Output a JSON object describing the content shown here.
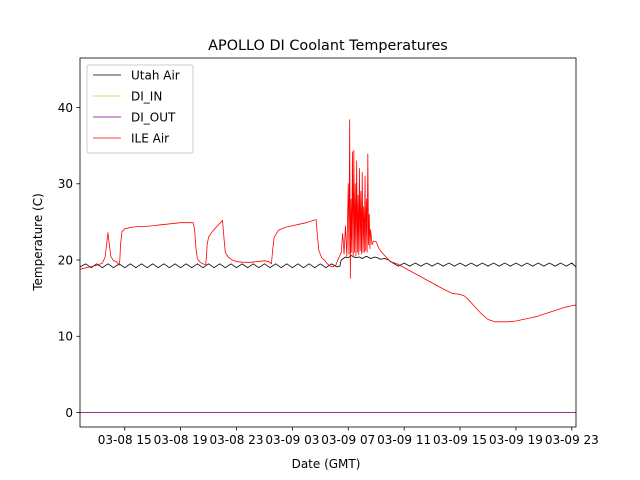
{
  "chart_data": {
    "type": "line",
    "title": "APOLLO DI Coolant Temperatures",
    "xlabel": "Date (GMT)",
    "ylabel": "Temperature (C)",
    "x_unit": "hours since 03-08 00:00 GMT",
    "xlim": [
      11.8,
      47.3
    ],
    "ylim": [
      -1.9,
      46.5
    ],
    "x_ticks": [
      {
        "value": 15,
        "label": "03-08 15"
      },
      {
        "value": 19,
        "label": "03-08 19"
      },
      {
        "value": 23,
        "label": "03-08 23"
      },
      {
        "value": 27,
        "label": "03-09 03"
      },
      {
        "value": 31,
        "label": "03-09 07"
      },
      {
        "value": 35,
        "label": "03-09 11"
      },
      {
        "value": 39,
        "label": "03-09 15"
      },
      {
        "value": 43,
        "label": "03-09 19"
      },
      {
        "value": 47,
        "label": "03-09 23"
      }
    ],
    "y_ticks": [
      {
        "value": 0,
        "label": "0"
      },
      {
        "value": 10,
        "label": "10"
      },
      {
        "value": 20,
        "label": "20"
      },
      {
        "value": 30,
        "label": "30"
      },
      {
        "value": 40,
        "label": "40"
      }
    ],
    "grid": false,
    "legend_position": "top-left",
    "series": [
      {
        "name": "Utah Air",
        "color": "#000000",
        "points": [
          [
            11.8,
            19.1
          ],
          [
            12.2,
            19.5
          ],
          [
            12.6,
            19.0
          ],
          [
            13.0,
            19.5
          ],
          [
            13.4,
            19.0
          ],
          [
            13.8,
            19.5
          ],
          [
            14.2,
            19.0
          ],
          [
            14.6,
            19.5
          ],
          [
            15.0,
            19.0
          ],
          [
            15.4,
            19.5
          ],
          [
            15.8,
            19.0
          ],
          [
            16.2,
            19.5
          ],
          [
            16.6,
            19.0
          ],
          [
            17.0,
            19.5
          ],
          [
            17.4,
            19.0
          ],
          [
            17.8,
            19.5
          ],
          [
            18.2,
            19.0
          ],
          [
            18.6,
            19.5
          ],
          [
            19.0,
            19.0
          ],
          [
            19.4,
            19.5
          ],
          [
            19.8,
            19.0
          ],
          [
            20.2,
            19.5
          ],
          [
            20.6,
            19.0
          ],
          [
            21.0,
            19.5
          ],
          [
            21.4,
            19.0
          ],
          [
            21.8,
            19.5
          ],
          [
            22.2,
            19.0
          ],
          [
            22.6,
            19.5
          ],
          [
            23.0,
            19.0
          ],
          [
            23.4,
            19.5
          ],
          [
            23.8,
            19.0
          ],
          [
            24.2,
            19.5
          ],
          [
            24.6,
            19.0
          ],
          [
            25.0,
            19.5
          ],
          [
            25.4,
            19.0
          ],
          [
            25.8,
            19.5
          ],
          [
            26.2,
            19.0
          ],
          [
            26.6,
            19.5
          ],
          [
            27.0,
            19.0
          ],
          [
            27.4,
            19.5
          ],
          [
            27.8,
            19.0
          ],
          [
            28.2,
            19.5
          ],
          [
            28.6,
            19.0
          ],
          [
            29.0,
            19.5
          ],
          [
            29.4,
            19.0
          ],
          [
            29.8,
            19.5
          ],
          [
            30.2,
            19.1
          ],
          [
            30.4,
            19.2
          ],
          [
            30.5,
            20.0
          ],
          [
            30.8,
            20.4
          ],
          [
            31.0,
            20.3
          ],
          [
            31.2,
            20.6
          ],
          [
            31.5,
            20.3
          ],
          [
            31.8,
            20.4
          ],
          [
            32.0,
            20.2
          ],
          [
            32.3,
            20.5
          ],
          [
            32.6,
            20.2
          ],
          [
            32.9,
            20.4
          ],
          [
            33.1,
            20.3
          ],
          [
            33.3,
            20.1
          ],
          [
            33.6,
            20.2
          ],
          [
            33.9,
            20.0
          ],
          [
            34.2,
            19.6
          ],
          [
            34.6,
            19.2
          ],
          [
            35.0,
            19.6
          ],
          [
            35.4,
            19.2
          ],
          [
            35.8,
            19.6
          ],
          [
            36.2,
            19.2
          ],
          [
            36.6,
            19.6
          ],
          [
            37.0,
            19.2
          ],
          [
            37.4,
            19.6
          ],
          [
            37.8,
            19.2
          ],
          [
            38.2,
            19.6
          ],
          [
            38.6,
            19.2
          ],
          [
            39.0,
            19.6
          ],
          [
            39.4,
            19.2
          ],
          [
            39.8,
            19.6
          ],
          [
            40.2,
            19.2
          ],
          [
            40.6,
            19.6
          ],
          [
            41.0,
            19.2
          ],
          [
            41.4,
            19.6
          ],
          [
            41.8,
            19.2
          ],
          [
            42.2,
            19.6
          ],
          [
            42.6,
            19.2
          ],
          [
            43.0,
            19.6
          ],
          [
            43.4,
            19.2
          ],
          [
            43.8,
            19.6
          ],
          [
            44.2,
            19.2
          ],
          [
            44.6,
            19.6
          ],
          [
            45.0,
            19.2
          ],
          [
            45.4,
            19.6
          ],
          [
            45.8,
            19.2
          ],
          [
            46.2,
            19.6
          ],
          [
            46.6,
            19.2
          ],
          [
            47.0,
            19.6
          ],
          [
            47.3,
            19.1
          ]
        ]
      },
      {
        "name": "DI_IN",
        "color": "#dfc027",
        "points": [
          [
            11.8,
            0
          ],
          [
            47.3,
            0
          ]
        ]
      },
      {
        "name": "DI_OUT",
        "color": "#800080",
        "points": [
          [
            11.8,
            0
          ],
          [
            47.3,
            0
          ]
        ]
      },
      {
        "name": "ILE Air",
        "color": "#ff0000",
        "points": [
          [
            11.8,
            18.8
          ],
          [
            12.5,
            19.1
          ],
          [
            13.0,
            19.3
          ],
          [
            13.4,
            19.6
          ],
          [
            13.6,
            20.4
          ],
          [
            13.7,
            22.0
          ],
          [
            13.8,
            23.6
          ],
          [
            13.9,
            22.0
          ],
          [
            14.0,
            20.5
          ],
          [
            14.2,
            19.9
          ],
          [
            14.4,
            19.8
          ],
          [
            14.5,
            19.6
          ],
          [
            14.6,
            19.3
          ],
          [
            14.65,
            20.0
          ],
          [
            14.7,
            22.0
          ],
          [
            14.8,
            23.7
          ],
          [
            15.0,
            24.1
          ],
          [
            15.5,
            24.3
          ],
          [
            16.0,
            24.4
          ],
          [
            16.5,
            24.4
          ],
          [
            17.0,
            24.5
          ],
          [
            17.5,
            24.6
          ],
          [
            18.0,
            24.7
          ],
          [
            18.5,
            24.8
          ],
          [
            19.0,
            24.9
          ],
          [
            19.5,
            24.9
          ],
          [
            19.9,
            24.9
          ],
          [
            20.0,
            24.0
          ],
          [
            20.1,
            21.5
          ],
          [
            20.2,
            20.2
          ],
          [
            20.4,
            19.7
          ],
          [
            20.6,
            19.5
          ],
          [
            20.8,
            19.4
          ],
          [
            20.85,
            20.5
          ],
          [
            20.9,
            22.0
          ],
          [
            21.0,
            23.0
          ],
          [
            21.3,
            23.8
          ],
          [
            21.6,
            24.4
          ],
          [
            21.9,
            25.0
          ],
          [
            22.0,
            25.2
          ],
          [
            22.1,
            23.0
          ],
          [
            22.2,
            21.0
          ],
          [
            22.4,
            20.4
          ],
          [
            22.7,
            20.0
          ],
          [
            23.0,
            19.8
          ],
          [
            23.5,
            19.7
          ],
          [
            24.0,
            19.7
          ],
          [
            24.5,
            19.8
          ],
          [
            25.0,
            19.9
          ],
          [
            25.3,
            19.8
          ],
          [
            25.5,
            19.5
          ],
          [
            25.6,
            21.5
          ],
          [
            25.7,
            23.0
          ],
          [
            26.0,
            23.9
          ],
          [
            26.5,
            24.3
          ],
          [
            27.0,
            24.5
          ],
          [
            27.5,
            24.7
          ],
          [
            28.0,
            24.9
          ],
          [
            28.5,
            25.2
          ],
          [
            28.7,
            25.3
          ],
          [
            28.8,
            23.0
          ],
          [
            28.9,
            21.2
          ],
          [
            29.1,
            20.3
          ],
          [
            29.3,
            20.0
          ],
          [
            29.5,
            19.5
          ],
          [
            29.7,
            19.2
          ],
          [
            29.9,
            19.1
          ],
          [
            30.1,
            19.3
          ],
          [
            30.3,
            20.2
          ],
          [
            30.5,
            21.0
          ],
          [
            30.6,
            23.5
          ],
          [
            30.7,
            20.8
          ],
          [
            30.8,
            24.5
          ],
          [
            30.9,
            20.5
          ],
          [
            31.0,
            30.0
          ],
          [
            31.05,
            20.8
          ],
          [
            31.1,
            38.4
          ],
          [
            31.15,
            17.6
          ],
          [
            31.2,
            28.0
          ],
          [
            31.25,
            21.0
          ],
          [
            31.3,
            34.2
          ],
          [
            31.35,
            20.5
          ],
          [
            31.4,
            34.4
          ],
          [
            31.45,
            21.0
          ],
          [
            31.5,
            30.0
          ],
          [
            31.55,
            20.5
          ],
          [
            31.6,
            33.0
          ],
          [
            31.65,
            21.0
          ],
          [
            31.7,
            28.5
          ],
          [
            31.75,
            20.7
          ],
          [
            31.8,
            32.0
          ],
          [
            31.85,
            21.2
          ],
          [
            31.9,
            29.0
          ],
          [
            31.95,
            20.8
          ],
          [
            32.0,
            31.5
          ],
          [
            32.05,
            21.0
          ],
          [
            32.1,
            27.0
          ],
          [
            32.15,
            21.0
          ],
          [
            32.2,
            31.0
          ],
          [
            32.25,
            21.2
          ],
          [
            32.3,
            28.0
          ],
          [
            32.35,
            21.0
          ],
          [
            32.4,
            33.9
          ],
          [
            32.45,
            22.0
          ],
          [
            32.5,
            26.0
          ],
          [
            32.55,
            21.5
          ],
          [
            32.6,
            24.0
          ],
          [
            32.7,
            22.0
          ],
          [
            32.8,
            22.5
          ],
          [
            33.0,
            22.4
          ],
          [
            33.2,
            21.5
          ],
          [
            33.4,
            21.0
          ],
          [
            33.7,
            20.4
          ],
          [
            34.0,
            19.8
          ],
          [
            34.5,
            19.5
          ],
          [
            35.0,
            19.0
          ],
          [
            35.5,
            18.5
          ],
          [
            36.0,
            18.0
          ],
          [
            36.5,
            17.5
          ],
          [
            37.0,
            17.0
          ],
          [
            37.5,
            16.5
          ],
          [
            38.0,
            16.0
          ],
          [
            38.5,
            15.6
          ],
          [
            39.0,
            15.5
          ],
          [
            39.3,
            15.3
          ],
          [
            39.6,
            14.8
          ],
          [
            40.0,
            14.0
          ],
          [
            40.5,
            13.0
          ],
          [
            41.0,
            12.2
          ],
          [
            41.5,
            11.9
          ],
          [
            42.0,
            11.9
          ],
          [
            42.5,
            11.9
          ],
          [
            43.0,
            12.0
          ],
          [
            43.5,
            12.2
          ],
          [
            44.0,
            12.4
          ],
          [
            44.5,
            12.6
          ],
          [
            45.0,
            12.9
          ],
          [
            45.5,
            13.2
          ],
          [
            46.0,
            13.5
          ],
          [
            46.5,
            13.8
          ],
          [
            47.0,
            14.0
          ],
          [
            47.3,
            14.1
          ]
        ]
      }
    ]
  }
}
